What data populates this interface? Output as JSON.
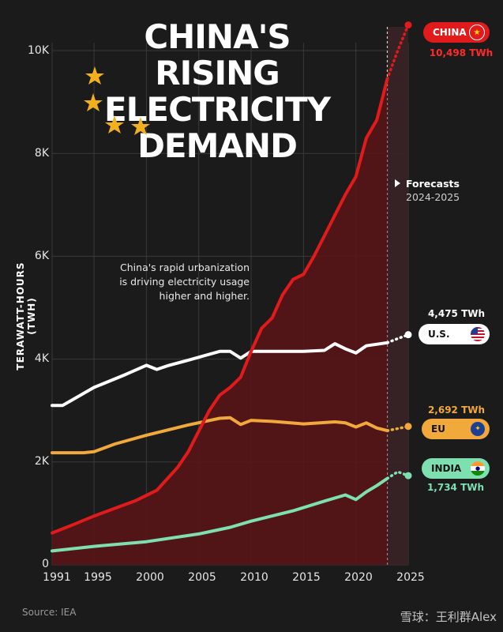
{
  "title_lines": [
    "China's Rising",
    "Electricity",
    "Demand"
  ],
  "source": "Source: IEA",
  "watermark": "雪球：王利群Alex",
  "annotation": [
    "China's rapid urbanization",
    "is driving electricity usage",
    "higher and higher."
  ],
  "forecast": {
    "label": "Forecasts",
    "years": "2024-2025"
  },
  "colors": {
    "china": "#e11b1b",
    "us": "#ffffff",
    "eu": "#f2a93b",
    "india": "#7ee0b1",
    "background": "#1b1b1b"
  },
  "labels": {
    "china": {
      "name": "CHINA",
      "value": "10,498 TWh",
      "flag": "china-flag-icon"
    },
    "us": {
      "name": "U.S.",
      "value": "4,475 TWh",
      "flag": "us-flag-icon"
    },
    "eu": {
      "name": "EU",
      "value": "2,692 TWh",
      "flag": "eu-flag-icon"
    },
    "india": {
      "name": "INDIA",
      "value": "1,734 TWh",
      "flag": "india-flag-icon"
    }
  },
  "chart_data": {
    "type": "line",
    "title": "China's Rising Electricity Demand",
    "xlabel": "",
    "ylabel": "TERAWATT-HOURS (TWH)",
    "xlim": [
      1991,
      2025
    ],
    "ylim": [
      0,
      10000
    ],
    "x_ticks": [
      "1991",
      "1995",
      "2000",
      "2005",
      "2010",
      "2015",
      "2020",
      "2025"
    ],
    "y_ticks": [
      "0",
      "2K",
      "4K",
      "6K",
      "8K",
      "10K"
    ],
    "forecast_start": 2023,
    "series": [
      {
        "name": "China",
        "key": "china",
        "x": [
          1991,
          1993,
          1995,
          1997,
          1999,
          2001,
          2003,
          2004,
          2005,
          2006,
          2007,
          2008,
          2009,
          2010,
          2011,
          2012,
          2013,
          2014,
          2015,
          2016,
          2017,
          2018,
          2019,
          2020,
          2021,
          2022,
          2023,
          2024,
          2025
        ],
        "values": [
          620,
          780,
          950,
          1100,
          1250,
          1450,
          1900,
          2200,
          2600,
          3000,
          3300,
          3450,
          3650,
          4150,
          4600,
          4800,
          5250,
          5550,
          5650,
          6000,
          6400,
          6800,
          7200,
          7550,
          8300,
          8650,
          9450,
          10000,
          10498
        ]
      },
      {
        "name": "U.S.",
        "key": "us",
        "x": [
          1991,
          1992,
          1995,
          1998,
          2000,
          2001,
          2002,
          2004,
          2007,
          2008,
          2009,
          2010,
          2012,
          2015,
          2017,
          2018,
          2019,
          2020,
          2021,
          2023,
          2024,
          2025
        ],
        "values": [
          3100,
          3100,
          3450,
          3700,
          3880,
          3800,
          3870,
          3980,
          4150,
          4150,
          4020,
          4150,
          4150,
          4150,
          4170,
          4300,
          4200,
          4120,
          4260,
          4320,
          4400,
          4475
        ]
      },
      {
        "name": "EU",
        "key": "eu",
        "x": [
          1991,
          1994,
          1995,
          1997,
          2000,
          2004,
          2007,
          2008,
          2009,
          2010,
          2012,
          2015,
          2018,
          2019,
          2020,
          2021,
          2022,
          2023,
          2024,
          2025
        ],
        "values": [
          2180,
          2180,
          2200,
          2350,
          2520,
          2720,
          2850,
          2860,
          2730,
          2810,
          2790,
          2740,
          2780,
          2760,
          2680,
          2760,
          2660,
          2610,
          2650,
          2692
        ]
      },
      {
        "name": "India",
        "key": "india",
        "x": [
          1991,
          1995,
          2000,
          2005,
          2008,
          2010,
          2014,
          2017,
          2019,
          2020,
          2021,
          2022,
          2023,
          2024,
          2025
        ],
        "values": [
          270,
          360,
          450,
          600,
          730,
          850,
          1050,
          1240,
          1360,
          1270,
          1420,
          1540,
          1680,
          1810,
          1734
        ]
      }
    ]
  }
}
